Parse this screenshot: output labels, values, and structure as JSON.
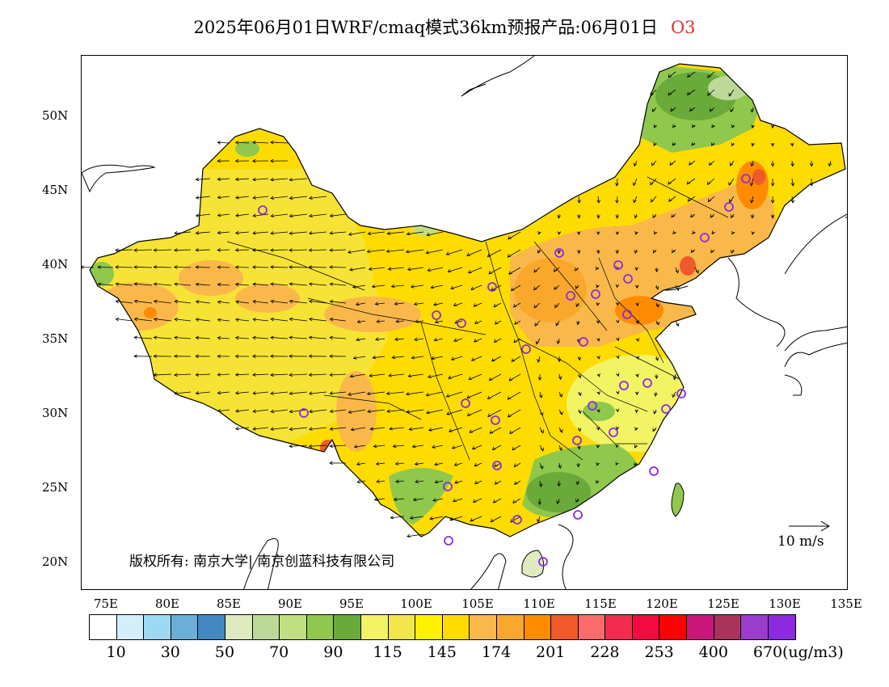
{
  "title": {
    "main": "2025年06月01日WRF/cmaq模式36km预报产品:06月01日",
    "pollutant": "O3"
  },
  "map": {
    "lat_labels": [
      "50N",
      "45N",
      "40N",
      "35N",
      "30N",
      "25N",
      "20N"
    ],
    "lon_labels": [
      "75E",
      "80E",
      "85E",
      "90E",
      "95E",
      "100E",
      "105E",
      "110E",
      "115E",
      "120E",
      "125E",
      "130E",
      "135E"
    ],
    "copyright": "版权所有: 南京大学| 南京创蓝科技有限公司",
    "wind_scale": "10 m/s",
    "icons": {
      "wind_vectors": "arrow-icon",
      "stations": "circle-marker-icon"
    }
  },
  "colorbar": {
    "colors": [
      "#ffffff",
      "#d4eefb",
      "#9fd8f4",
      "#6baed6",
      "#4488c2",
      "#dfeac0",
      "#bcd99a",
      "#c1df80",
      "#8fc84d",
      "#6aaa3a",
      "#f2f464",
      "#f2e64c",
      "#fff200",
      "#ffdc00",
      "#fab84a",
      "#faa82c",
      "#ff8c00",
      "#f05a2a",
      "#fe6b6b",
      "#f22c50",
      "#f20a40",
      "#ff0000",
      "#c8167a",
      "#a8325a",
      "#9a3ccc",
      "#8a2be2"
    ],
    "labels": [
      "10",
      "30",
      "50",
      "70",
      "90",
      "115",
      "145",
      "174",
      "201",
      "228",
      "253",
      "400",
      "670"
    ],
    "unit": "(ug/m3)"
  }
}
